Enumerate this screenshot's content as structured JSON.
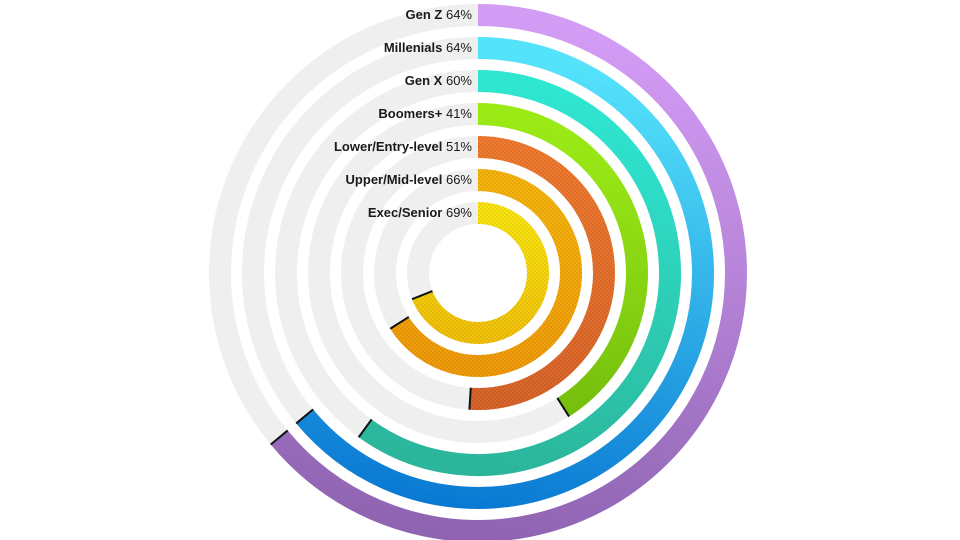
{
  "chart_data": {
    "type": "radial_bar",
    "title": "",
    "center": [
      478,
      273
    ],
    "start_angle_deg": 0,
    "direction": "clockwise",
    "full_circle_percent": 100,
    "track_color": "#efefef",
    "series": [
      {
        "name": "Gen Z",
        "value": 64,
        "label": "Gen Z",
        "pct_text": "64%",
        "color_start": "#d39cf5",
        "color_end": "#8e63b0"
      },
      {
        "name": "Millenials",
        "value": 64,
        "label": "Millenials",
        "pct_text": "64%",
        "color_start": "#55e3fb",
        "color_end": "#0a79d3"
      },
      {
        "name": "Gen X",
        "value": 60,
        "label": "Gen X",
        "pct_text": "60%",
        "color_start": "#2fe6d1",
        "color_end": "#2bb59a"
      },
      {
        "name": "Boomers+",
        "value": 41,
        "label": "Boomers+",
        "pct_text": "41%",
        "color_start": "#9bea16",
        "color_end": "#6fb80d"
      },
      {
        "name": "Lower/Entry-level",
        "value": 51,
        "label": "Lower/Entry-level",
        "pct_text": "51%",
        "color_start": "#f07a2e",
        "color_end": "#d9642a"
      },
      {
        "name": "Upper/Mid-level",
        "value": 66,
        "label": "Upper/Mid-level",
        "pct_text": "66%",
        "color_start": "#f7b50c",
        "color_end": "#f19b0a"
      },
      {
        "name": "Exec/Senior",
        "value": 69,
        "label": "Exec/Senior",
        "pct_text": "69%",
        "color_start": "#fbe50f",
        "color_end": "#f3c20a"
      }
    ],
    "radii": [
      258,
      225,
      192,
      159,
      126,
      93,
      60
    ],
    "ring_width": 22,
    "legend_position": "left-of-rings-at-top"
  },
  "labels": [
    {
      "name": "Gen Z",
      "pct": "64%"
    },
    {
      "name": "Millenials",
      "pct": "64%"
    },
    {
      "name": "Gen X",
      "pct": "60%"
    },
    {
      "name": "Boomers+",
      "pct": "41%"
    },
    {
      "name": "Lower/Entry-level",
      "pct": "51%"
    },
    {
      "name": "Upper/Mid-level",
      "pct": "66%"
    },
    {
      "name": "Exec/Senior",
      "pct": "69%"
    }
  ]
}
